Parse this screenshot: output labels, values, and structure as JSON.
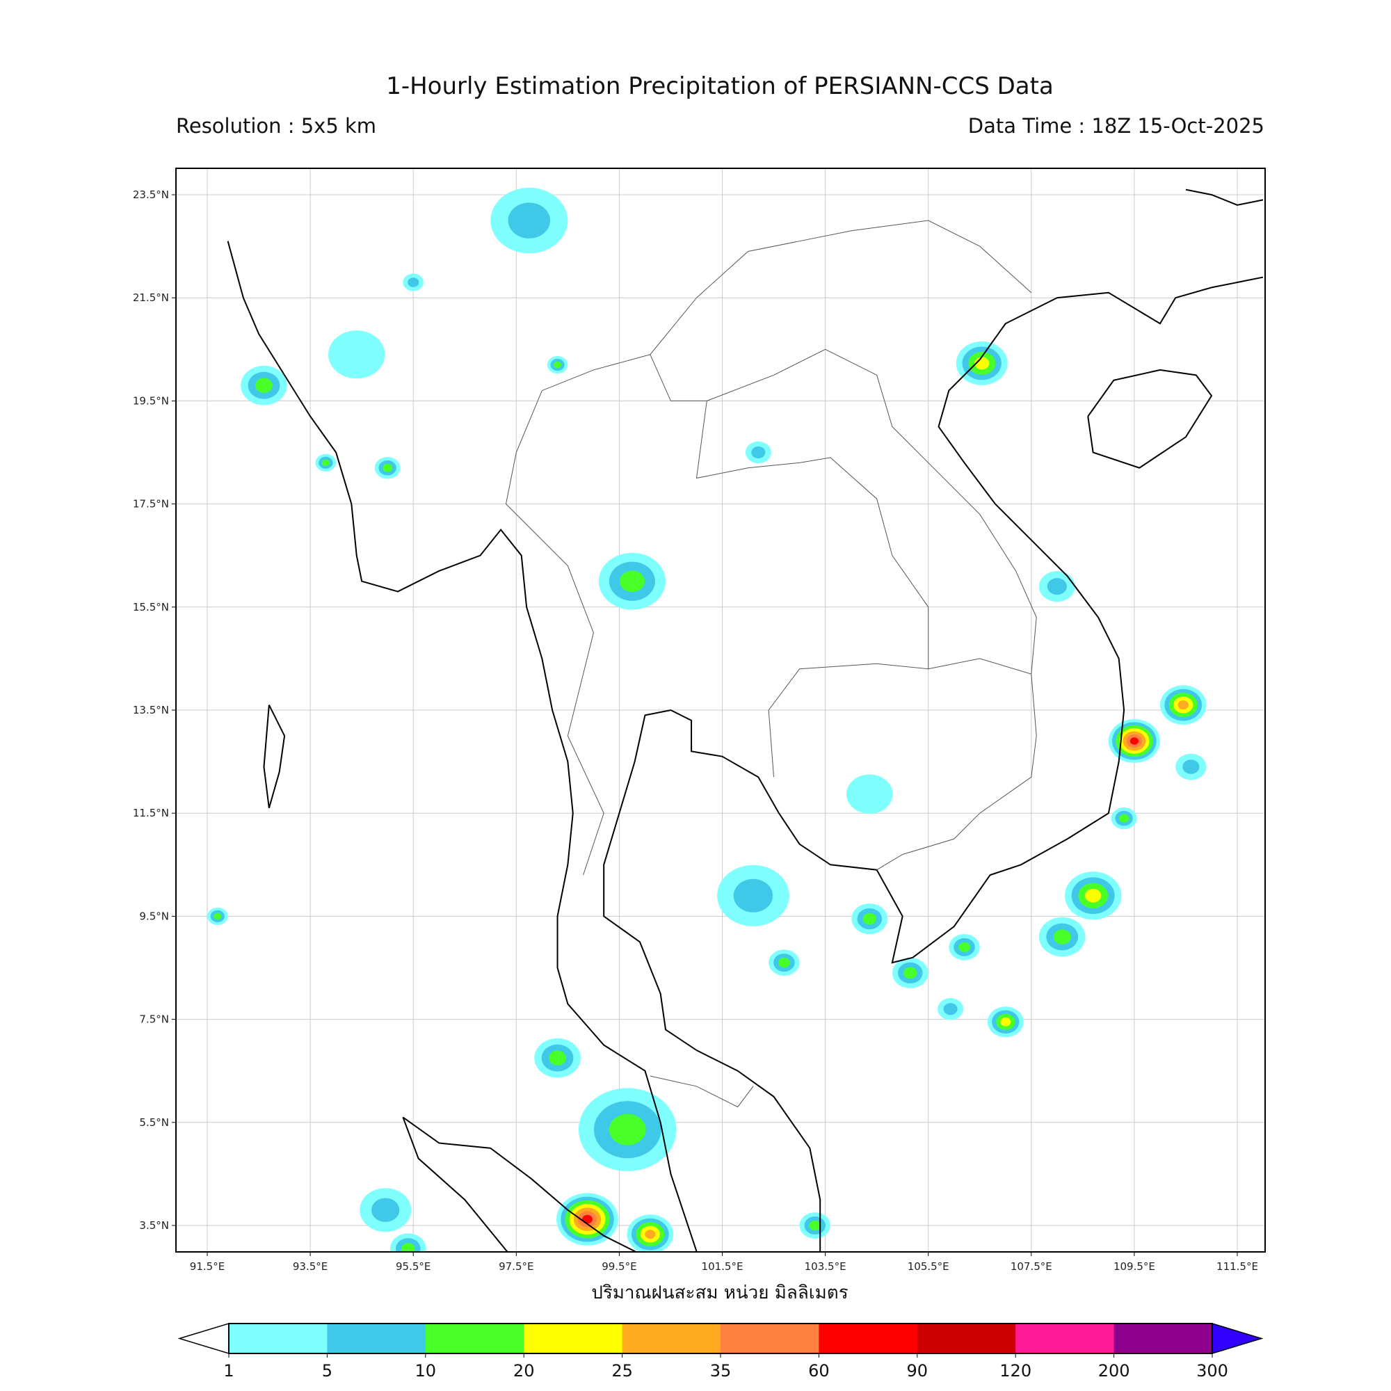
{
  "header": {
    "title": "1-Hourly Estimation Precipitation of PERSIANN-CCS Data",
    "resolution": "Resolution : 5x5 km",
    "data_time": "Data Time : 18Z 15-Oct-2025"
  },
  "map": {
    "extent": {
      "lon": [
        90.9,
        112.05
      ],
      "lat": [
        2.99,
        24.0
      ]
    },
    "lon_ticks": [
      "91.5°E",
      "93.5°E",
      "95.5°E",
      "97.5°E",
      "99.5°E",
      "101.5°E",
      "103.5°E",
      "105.5°E",
      "107.5°E",
      "109.5°E",
      "111.5°E"
    ],
    "lon_tick_values": [
      91.5,
      93.5,
      95.5,
      97.5,
      99.5,
      101.5,
      103.5,
      105.5,
      107.5,
      109.5,
      111.5
    ],
    "lat_ticks": [
      "23.5°N",
      "21.5°N",
      "19.5°N",
      "17.5°N",
      "15.5°N",
      "13.5°N",
      "11.5°N",
      "9.5°N",
      "7.5°N",
      "5.5°N",
      "3.5°N"
    ],
    "lat_tick_values": [
      23.5,
      21.5,
      19.5,
      17.5,
      15.5,
      13.5,
      11.5,
      9.5,
      7.5,
      5.5,
      3.5
    ],
    "grid": true,
    "rain_cells": [
      {
        "lon": 97.75,
        "lat": 23.0,
        "r": 0.75,
        "max_class": 1
      },
      {
        "lon": 99.66,
        "lat": 5.36,
        "r": 0.95,
        "max_class": 2
      },
      {
        "lon": 98.88,
        "lat": 3.62,
        "r": 0.6,
        "max_class": 6
      },
      {
        "lon": 100.1,
        "lat": 3.33,
        "r": 0.45,
        "max_class": 4
      },
      {
        "lon": 99.75,
        "lat": 16.0,
        "r": 0.65,
        "max_class": 2
      },
      {
        "lon": 102.1,
        "lat": 9.9,
        "r": 0.7,
        "max_class": 1
      },
      {
        "lon": 109.5,
        "lat": 12.9,
        "r": 0.5,
        "max_class": 6
      },
      {
        "lon": 110.45,
        "lat": 13.6,
        "r": 0.45,
        "max_class": 4
      },
      {
        "lon": 108.7,
        "lat": 9.9,
        "r": 0.55,
        "max_class": 3
      },
      {
        "lon": 108.1,
        "lat": 9.1,
        "r": 0.45,
        "max_class": 2
      },
      {
        "lon": 106.54,
        "lat": 20.23,
        "r": 0.5,
        "max_class": 3
      },
      {
        "lon": 92.6,
        "lat": 19.8,
        "r": 0.45,
        "max_class": 2
      },
      {
        "lon": 94.4,
        "lat": 20.4,
        "r": 0.55,
        "max_class": 0
      },
      {
        "lon": 98.3,
        "lat": 6.75,
        "r": 0.45,
        "max_class": 2
      },
      {
        "lon": 94.96,
        "lat": 3.8,
        "r": 0.5,
        "max_class": 1
      },
      {
        "lon": 104.36,
        "lat": 9.45,
        "r": 0.35,
        "max_class": 2
      },
      {
        "lon": 104.36,
        "lat": 11.87,
        "r": 0.45,
        "max_class": 0
      },
      {
        "lon": 102.7,
        "lat": 8.6,
        "r": 0.3,
        "max_class": 2
      },
      {
        "lon": 105.15,
        "lat": 8.4,
        "r": 0.35,
        "max_class": 2
      },
      {
        "lon": 108.0,
        "lat": 15.9,
        "r": 0.35,
        "max_class": 1
      },
      {
        "lon": 107.0,
        "lat": 7.45,
        "r": 0.35,
        "max_class": 3
      },
      {
        "lon": 105.93,
        "lat": 7.7,
        "r": 0.25,
        "max_class": 1
      },
      {
        "lon": 102.2,
        "lat": 18.5,
        "r": 0.25,
        "max_class": 1
      },
      {
        "lon": 109.3,
        "lat": 11.4,
        "r": 0.25,
        "max_class": 2
      },
      {
        "lon": 110.6,
        "lat": 12.4,
        "r": 0.3,
        "max_class": 1
      },
      {
        "lon": 103.3,
        "lat": 3.5,
        "r": 0.3,
        "max_class": 2
      },
      {
        "lon": 95.4,
        "lat": 3.05,
        "r": 0.35,
        "max_class": 2
      },
      {
        "lon": 95.5,
        "lat": 21.8,
        "r": 0.2,
        "max_class": 1
      },
      {
        "lon": 98.3,
        "lat": 20.2,
        "r": 0.2,
        "max_class": 2
      },
      {
        "lon": 106.2,
        "lat": 8.9,
        "r": 0.3,
        "max_class": 2
      },
      {
        "lon": 93.8,
        "lat": 18.3,
        "r": 0.2,
        "max_class": 2
      },
      {
        "lon": 95.0,
        "lat": 18.2,
        "r": 0.25,
        "max_class": 2
      },
      {
        "lon": 91.7,
        "lat": 9.5,
        "r": 0.2,
        "max_class": 2
      }
    ]
  },
  "xlabel": "ปริมาณฝนสะสม หน่วย มิลลิเมตร",
  "colorbar": {
    "levels": [
      "1",
      "5",
      "10",
      "20",
      "25",
      "35",
      "60",
      "90",
      "120",
      "200",
      "300"
    ],
    "colors": [
      "#80ffff",
      "#40c8e8",
      "#48ff28",
      "#ffff00",
      "#ffaa20",
      "#ff8040",
      "#ff0000",
      "#cc0000",
      "#ff1a96",
      "#8c008c"
    ],
    "over_color": "#3200ff",
    "under_color": "#ffffff"
  }
}
